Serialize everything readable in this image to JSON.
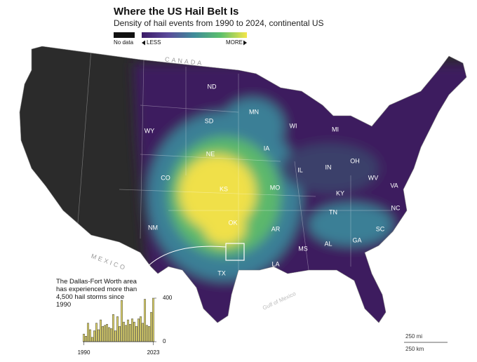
{
  "header": {
    "title": "Where the US Hail Belt Is",
    "subtitle": "Density of hail events from 1990 to 2024, continental US"
  },
  "legend": {
    "no_data": "No data",
    "less": "LESS",
    "more": "MORE"
  },
  "map": {
    "countries": [
      "CANADA",
      "MEXICO"
    ],
    "water": "Gulf of Mexico",
    "states": [
      "ND",
      "MN",
      "SD",
      "WY",
      "WI",
      "MI",
      "NE",
      "IA",
      "CO",
      "IL",
      "IN",
      "OH",
      "KS",
      "MO",
      "KY",
      "WV",
      "VA",
      "NM",
      "OK",
      "AR",
      "TN",
      "NC",
      "SC",
      "AL",
      "GA",
      "MS",
      "TX",
      "LA"
    ]
  },
  "annotation": "The Dallas-Fort Worth area has experienced more than 4,500 hail storms since 1990",
  "scale": {
    "miles": "250 mi",
    "km": "250 km"
  },
  "chart_data": {
    "type": "bar",
    "color": "#e8dd6a",
    "x": [
      1990,
      1991,
      1992,
      1993,
      1994,
      1995,
      1996,
      1997,
      1998,
      1999,
      2000,
      2001,
      2002,
      2003,
      2004,
      2005,
      2006,
      2007,
      2008,
      2009,
      2010,
      2011,
      2012,
      2013,
      2014,
      2015,
      2016,
      2017,
      2018,
      2019,
      2020,
      2021,
      2022,
      2023
    ],
    "values": [
      70,
      50,
      170,
      110,
      40,
      100,
      170,
      110,
      200,
      140,
      150,
      160,
      130,
      120,
      250,
      100,
      230,
      140,
      380,
      180,
      150,
      200,
      160,
      210,
      180,
      140,
      210,
      230,
      170,
      390,
      150,
      140,
      270,
      400
    ],
    "xlim": [
      1989.5,
      2023.5
    ],
    "xticks": [
      1990,
      2023
    ],
    "ylim": [
      0,
      400
    ],
    "yticks": [
      0,
      400
    ]
  }
}
